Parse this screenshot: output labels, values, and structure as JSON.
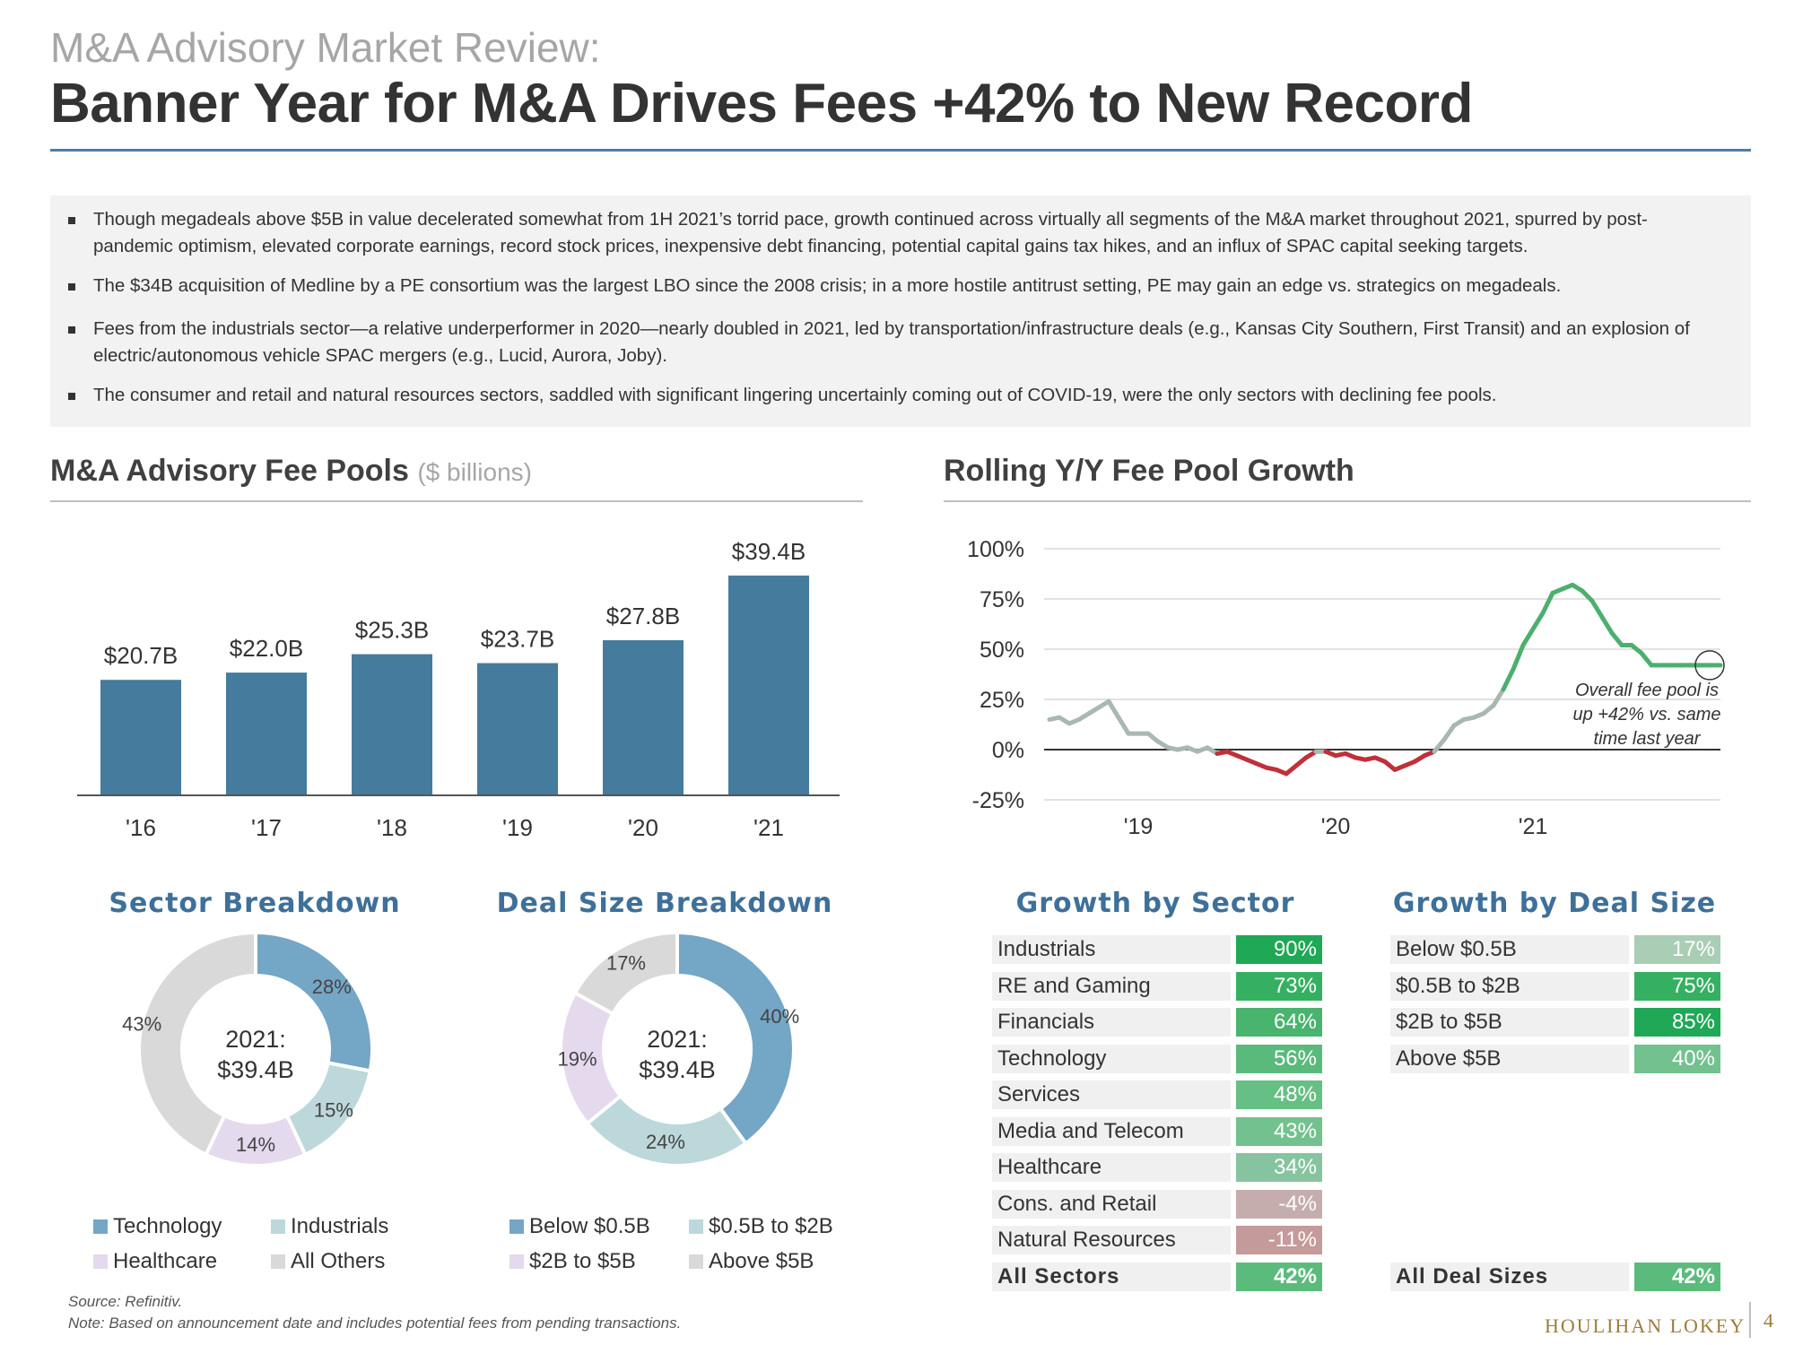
{
  "header": {
    "subtitle": "M&A Advisory Market Review:",
    "title": "Banner Year for M&A Drives Fees +42% to New Record"
  },
  "bullets": [
    "Though megadeals above $5B in value decelerated somewhat from 1H 2021’s torrid pace, growth continued across virtually all segments of the M&A market throughout 2021, spurred by post-pandemic optimism, elevated corporate earnings, record stock prices, inexpensive debt financing, potential capital gains tax hikes, and an influx of SPAC capital seeking targets.",
    "The $34B acquisition of Medline by a PE consortium was the largest LBO since the 2008 crisis; in a more hostile antitrust setting, PE may gain an edge vs. strategics on megadeals.",
    "Fees from the industrials sector—a relative underperformer in 2020—nearly doubled in 2021, led by transportation/infrastructure deals (e.g., Kansas City Southern, First Transit) and an explosion of electric/autonomous vehicle SPAC mergers (e.g., Lucid, Aurora, Joby).",
    "The consumer and retail and natural resources sectors, saddled with significant lingering uncertainly coming out of COVID-19, were the only sectors with declining fee pools."
  ],
  "sections": {
    "fee_pools_title": "M&A Advisory Fee Pools",
    "fee_pools_unit": "($ billions)",
    "growth_title": "Rolling Y/Y Fee Pool Growth",
    "sector_breakdown_title": "Sector Breakdown",
    "deal_size_breakdown_title": "Deal Size Breakdown",
    "growth_by_sector_title": "Growth by Sector",
    "growth_by_deal_size_title": "Growth by Deal Size"
  },
  "colors": {
    "bar": "#457b9d",
    "donut_1": "#74a6c6",
    "donut_2": "#bcd8da",
    "donut_3": "#e5d9ee",
    "donut_4": "#d9d9d9",
    "positive_line": "#4caf6e",
    "negative_line": "#c0303a",
    "neutral_line": "#a9b8b0"
  },
  "chart_data": [
    {
      "type": "bar",
      "title": "M&A Advisory Fee Pools ($ billions)",
      "categories": [
        "'16",
        "'17",
        "'18",
        "'19",
        "'20",
        "'21"
      ],
      "values": [
        20.7,
        22.0,
        25.3,
        23.7,
        27.8,
        39.4
      ],
      "labels": [
        "$20.7B",
        "$22.0B",
        "$25.3B",
        "$23.7B",
        "$27.8B",
        "$39.4B"
      ],
      "ylim": [
        0,
        45
      ]
    },
    {
      "type": "line",
      "title": "Rolling Y/Y Fee Pool Growth",
      "y_ticks": [
        "100%",
        "75%",
        "50%",
        "25%",
        "0%",
        "-25%"
      ],
      "y_tick_values": [
        100,
        75,
        50,
        25,
        0,
        -25
      ],
      "x_ticks": [
        "'19",
        "'20",
        "'21"
      ],
      "x_tick_values": [
        2019.0,
        2020.0,
        2021.0
      ],
      "ylim": [
        -25,
        100
      ],
      "xlim": [
        2018.5,
        2022.0
      ],
      "x": [
        2018.55,
        2018.6,
        2018.65,
        2018.7,
        2018.75,
        2018.8,
        2018.85,
        2018.9,
        2018.95,
        2019.0,
        2019.05,
        2019.1,
        2019.15,
        2019.2,
        2019.25,
        2019.3,
        2019.35,
        2019.4,
        2019.45,
        2019.5,
        2019.55,
        2019.6,
        2019.65,
        2019.7,
        2019.75,
        2019.8,
        2019.85,
        2019.9,
        2019.95,
        2020.0,
        2020.05,
        2020.1,
        2020.15,
        2020.2,
        2020.25,
        2020.3,
        2020.35,
        2020.4,
        2020.45,
        2020.5,
        2020.55,
        2020.6,
        2020.65,
        2020.7,
        2020.75,
        2020.8,
        2020.85,
        2020.9,
        2020.95,
        2021.0,
        2021.05,
        2021.1,
        2021.15,
        2021.2,
        2021.25,
        2021.3,
        2021.35,
        2021.4,
        2021.45,
        2021.5,
        2021.55,
        2021.6,
        2021.65,
        2021.7,
        2021.75,
        2021.8,
        2021.85,
        2021.9,
        2021.95
      ],
      "y": [
        15,
        16,
        13,
        15,
        18,
        21,
        24,
        16,
        8,
        8,
        8,
        4,
        1,
        0,
        1,
        -1,
        1,
        -2,
        -1,
        -3,
        -5,
        -7,
        -9,
        -10,
        -12,
        -8,
        -4,
        -1,
        -1,
        -3,
        -2,
        -4,
        -5,
        -4,
        -6,
        -10,
        -8,
        -6,
        -3,
        -1,
        5,
        12,
        15,
        16,
        18,
        22,
        30,
        40,
        52,
        60,
        68,
        78,
        80,
        82,
        79,
        74,
        66,
        58,
        52,
        52,
        48,
        42,
        42,
        42,
        42,
        42,
        42,
        42,
        42
      ],
      "annotation": [
        "Overall fee pool is",
        "up +42% vs. same",
        "time last year"
      ]
    },
    {
      "type": "pie",
      "title": "Sector Breakdown",
      "center_label": [
        "2021:",
        "$39.4B"
      ],
      "labels": [
        "Technology",
        "Industrials",
        "Healthcare",
        "All Others"
      ],
      "values": [
        28,
        15,
        14,
        43
      ],
      "value_labels": [
        "28%",
        "15%",
        "14%",
        "43%"
      ]
    },
    {
      "type": "pie",
      "title": "Deal Size Breakdown",
      "center_label": [
        "2021:",
        "$39.4B"
      ],
      "labels": [
        "Below $0.5B",
        "$0.5B to $2B",
        "$2B to $5B",
        "Above $5B"
      ],
      "values": [
        40,
        24,
        19,
        17
      ],
      "value_labels": [
        "40%",
        "24%",
        "19%",
        "17%"
      ]
    },
    {
      "type": "table",
      "title": "Growth by Sector",
      "rows": [
        {
          "label": "Industrials",
          "value": "90%",
          "num": 90
        },
        {
          "label": "RE and Gaming",
          "value": "73%",
          "num": 73
        },
        {
          "label": "Financials",
          "value": "64%",
          "num": 64
        },
        {
          "label": "Technology",
          "value": "56%",
          "num": 56
        },
        {
          "label": "Services",
          "value": "48%",
          "num": 48
        },
        {
          "label": "Media and Telecom",
          "value": "43%",
          "num": 43
        },
        {
          "label": "Healthcare",
          "value": "34%",
          "num": 34
        },
        {
          "label": "Cons. and Retail",
          "value": "-4%",
          "num": -4
        },
        {
          "label": "Natural Resources",
          "value": "-11%",
          "num": -11
        },
        {
          "label": "All Sectors",
          "value": "42%",
          "num": 42
        }
      ]
    },
    {
      "type": "table",
      "title": "Growth by Deal Size",
      "rows": [
        {
          "label": "Below $0.5B",
          "value": "17%",
          "num": 17
        },
        {
          "label": "$0.5B to $2B",
          "value": "75%",
          "num": 75
        },
        {
          "label": "$2B to $5B",
          "value": "85%",
          "num": 85
        },
        {
          "label": "Above $5B",
          "value": "40%",
          "num": 40
        },
        {
          "label": "All Deal Sizes",
          "value": "42%",
          "num": 42
        }
      ]
    }
  ],
  "footer": {
    "source": "Source: Refinitiv.",
    "note": "Note: Based on announcement date and includes potential fees from pending transactions.",
    "logo": "HOULIHAN LOKEY",
    "page": "4"
  }
}
